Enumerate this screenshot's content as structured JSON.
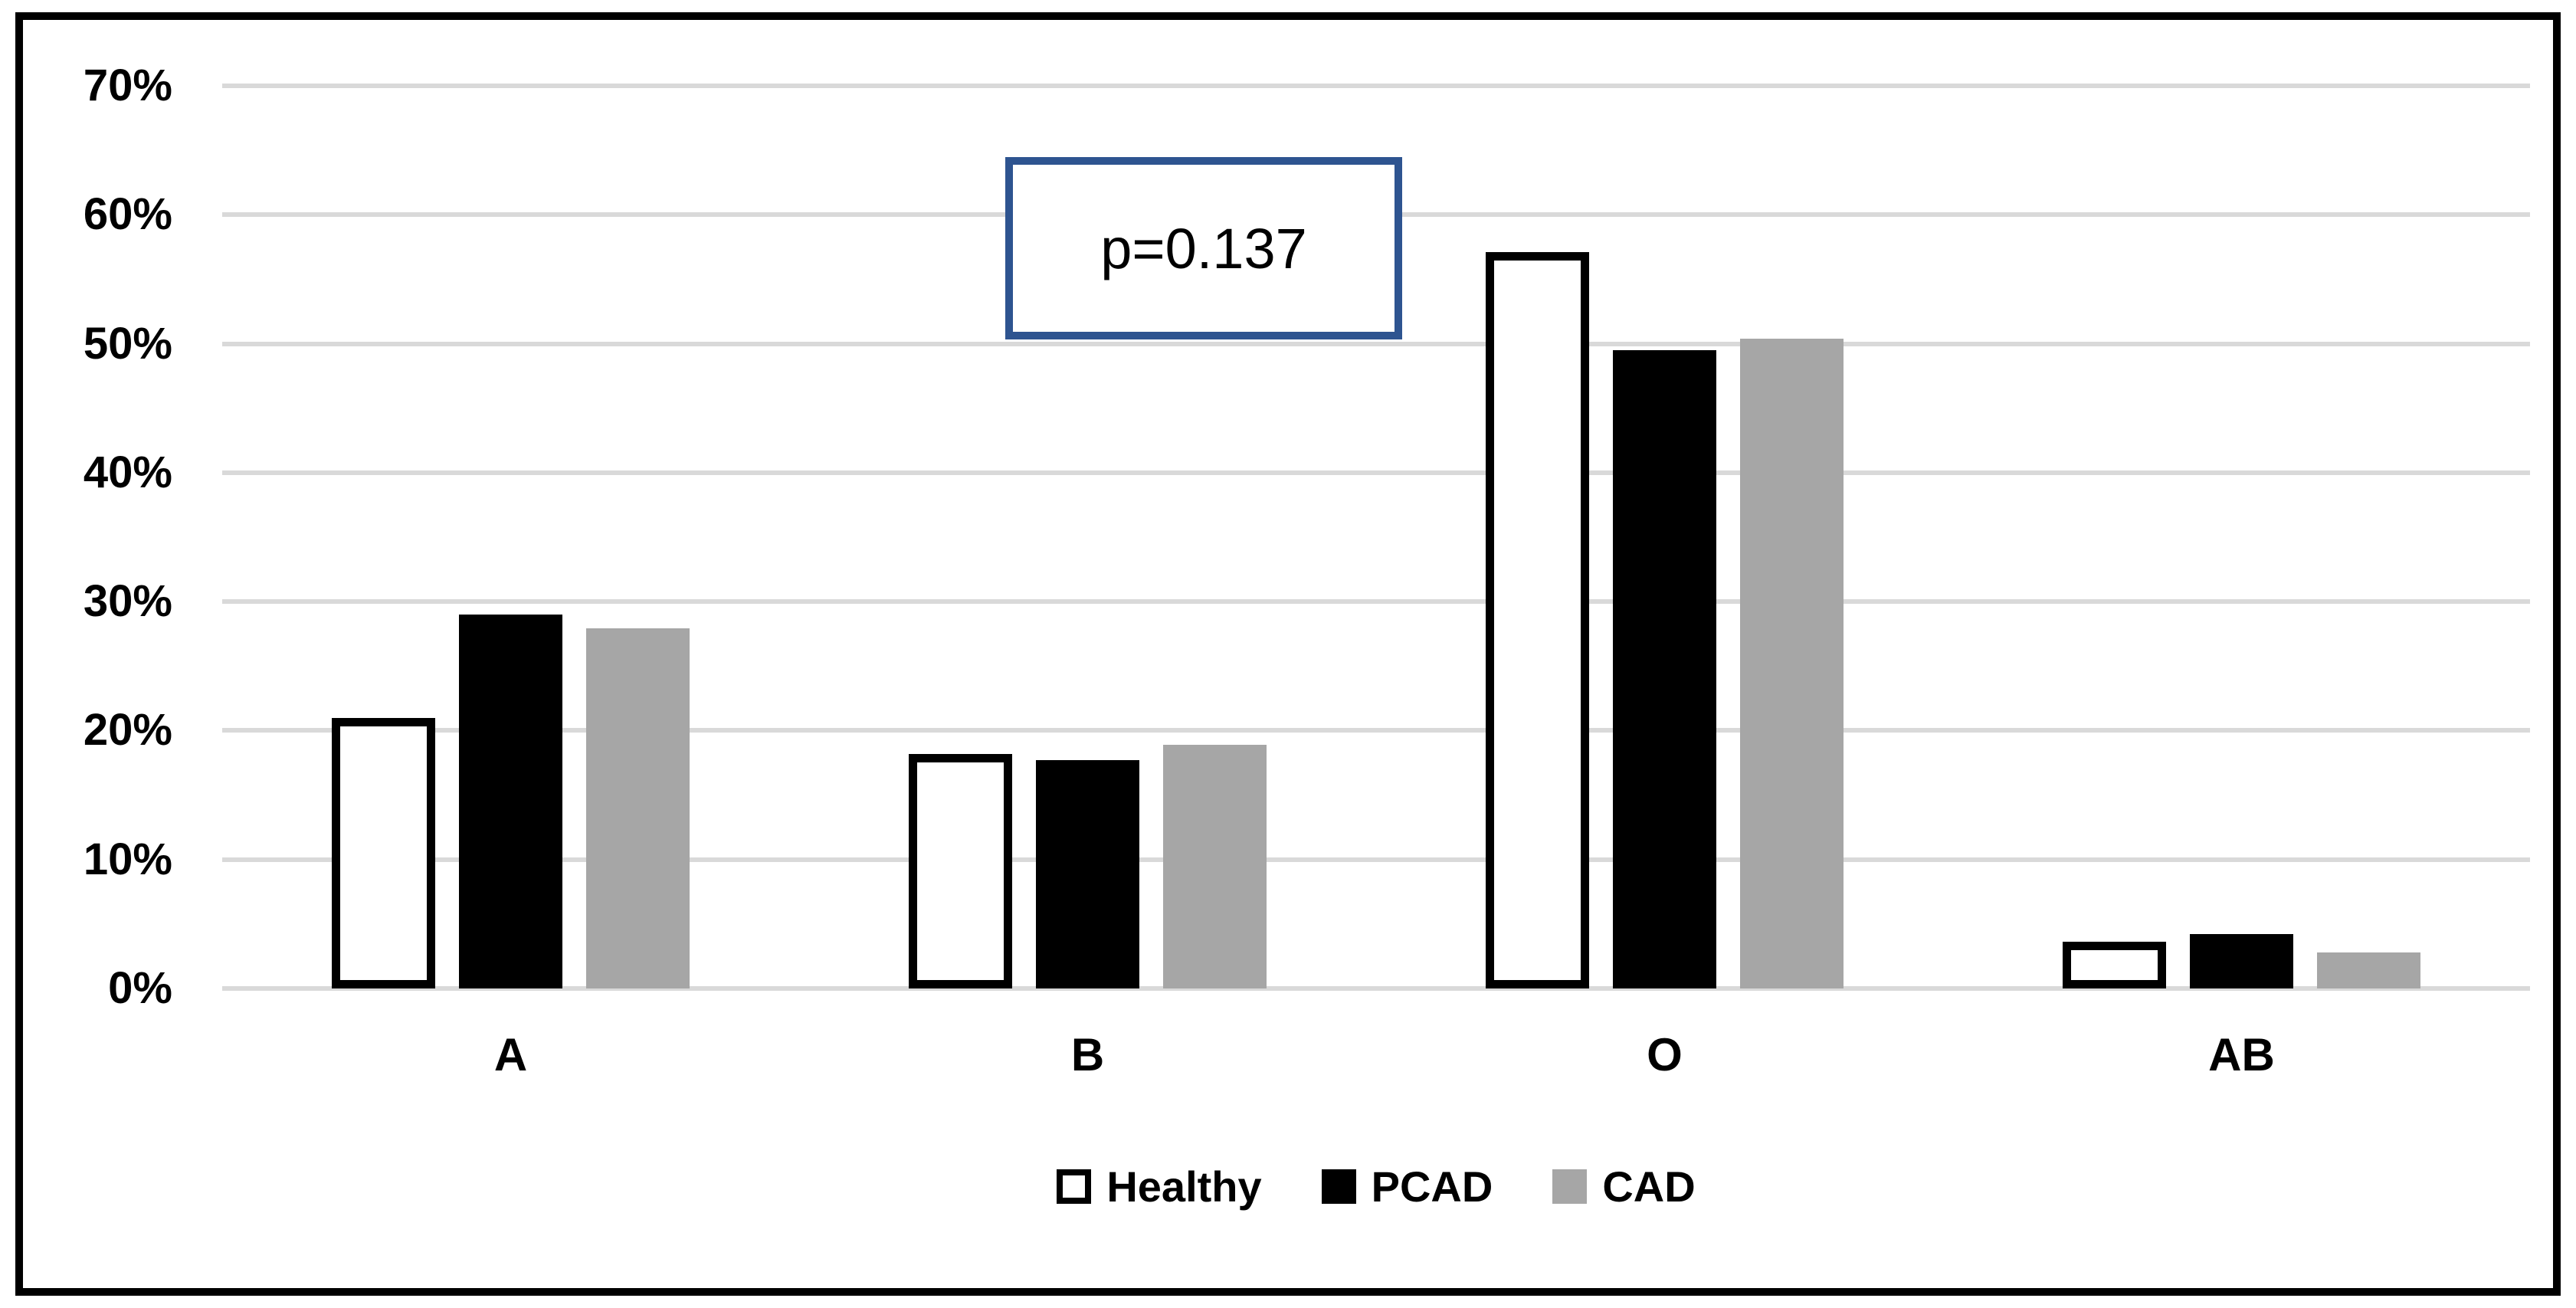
{
  "chart_data": {
    "type": "bar",
    "title": "",
    "categories": [
      "A",
      "B",
      "O",
      "AB"
    ],
    "series": [
      {
        "name": "Healthy",
        "fill": "#FFFFFF",
        "border_color": "#000000",
        "values": [
          21.0,
          18.2,
          57.1,
          3.6
        ]
      },
      {
        "name": "PCAD",
        "fill": "#000000",
        "values": [
          29.0,
          17.7,
          49.5,
          4.2
        ]
      },
      {
        "name": "CAD",
        "fill": "#A6A6A6",
        "values": [
          27.9,
          18.9,
          50.4,
          2.8
        ]
      }
    ],
    "xlabel": "",
    "ylabel": "",
    "ylim": [
      0,
      70
    ],
    "y_tick_step": 10,
    "y_tick_labels": [
      "0%",
      "10%",
      "20%",
      "30%",
      "40%",
      "50%",
      "60%",
      "70%"
    ],
    "grid": true,
    "gridline_color": "#D9D9D9",
    "legend_position": "bottom",
    "annotation": {
      "text": "p=0.137",
      "border_color": "#2E5490"
    }
  }
}
